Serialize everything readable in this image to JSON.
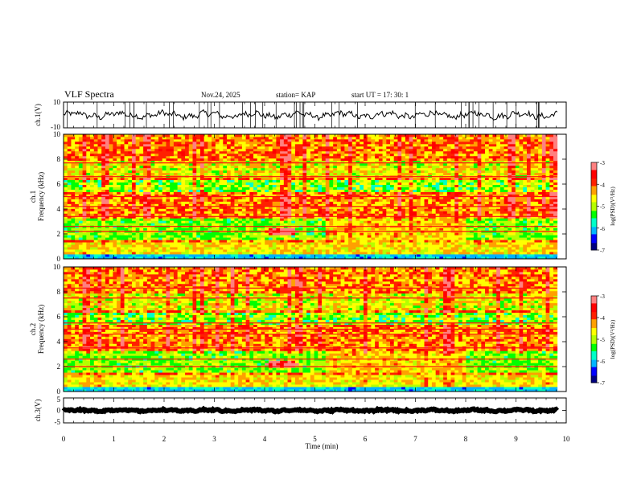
{
  "header": {
    "title": "VLF Spectra",
    "date": "Nov.24, 2025",
    "station": "station= KAP",
    "start": "start  UT  =    17: 30: 1"
  },
  "chart_data": [
    {
      "type": "line",
      "panel": "ch1-waveform",
      "ylabel": "ch.1(V)",
      "ylim": [
        -10,
        10
      ],
      "yticks": [
        "10",
        "-10"
      ],
      "xlim": [
        0,
        10
      ],
      "data_end_min": 9.82,
      "trace_level": 0,
      "trace_amplitude": 4,
      "color": "#000000"
    },
    {
      "type": "heatmap",
      "panel": "ch1-spectrogram",
      "ylabel": "ch.1\nFrequency  (kHz)",
      "ylim": [
        0,
        10
      ],
      "yticks": [
        "0",
        "2",
        "4",
        "6",
        "8",
        "10"
      ],
      "xlim": [
        0,
        10
      ],
      "data_end_min": 9.82,
      "colorbar": {
        "label": "log(PSD)(V²/Hz)",
        "range": [
          -7,
          -3
        ],
        "ticks": [
          "-3",
          "-4",
          "-5",
          "-6",
          "-7"
        ],
        "colors": [
          "#000080",
          "#0000ff",
          "#00b4ff",
          "#00ffc8",
          "#00ff00",
          "#b4ff00",
          "#ffff00",
          "#ffa000",
          "#ff2000",
          "#ff0000",
          "#ff8080",
          "#ffffff"
        ]
      },
      "features": {
        "mid_band_kHz": [
          1.5,
          3.3
        ],
        "mid_band_level": -5.6,
        "hot_spot": {
          "t_min": 4.35,
          "f_kHz": 2.2,
          "level": -3.5
        },
        "lines_kHz": [
          2.2,
          2.6,
          3.4,
          4.2,
          5.0,
          6.6,
          7.7
        ],
        "background_level": -4.2
      }
    },
    {
      "type": "heatmap",
      "panel": "ch2-spectrogram",
      "ylabel": "ch.2\nFrequency  (kHz)",
      "ylim": [
        0,
        10
      ],
      "yticks": [
        "0",
        "2",
        "4",
        "6",
        "8",
        "10"
      ],
      "xlim": [
        0,
        10
      ],
      "data_end_min": 9.82,
      "colorbar": {
        "label": "log(PSD)(V²/Hz)",
        "range": [
          -7,
          -3
        ],
        "ticks": [
          "-3",
          "-4",
          "-5",
          "-6",
          "-7"
        ]
      },
      "features": {
        "mid_band_kHz": [
          1.5,
          3.3
        ],
        "mid_band_level": -5.6,
        "hot_spot": {
          "t_min": 4.35,
          "f_kHz": 2.2,
          "level": -3.5
        },
        "lines_kHz": [
          2.0,
          2.6,
          3.5,
          4.6,
          5.0,
          5.5,
          7.5,
          8.3
        ],
        "background_level": -4.2
      }
    },
    {
      "type": "line",
      "panel": "ch3-waveform",
      "ylabel": "ch.3(V)",
      "ylim": [
        -5,
        5
      ],
      "yticks": [
        "5",
        "0",
        "-5"
      ],
      "xlim": [
        0,
        10
      ],
      "data_end_min": 9.82,
      "trace_level": 0,
      "trace_amplitude": 0.6,
      "color": "#000000"
    }
  ],
  "xaxis": {
    "label": "Time  (min)",
    "ticks": [
      "0",
      "1",
      "2",
      "3",
      "4",
      "5",
      "6",
      "7",
      "8",
      "9",
      "10"
    ]
  }
}
